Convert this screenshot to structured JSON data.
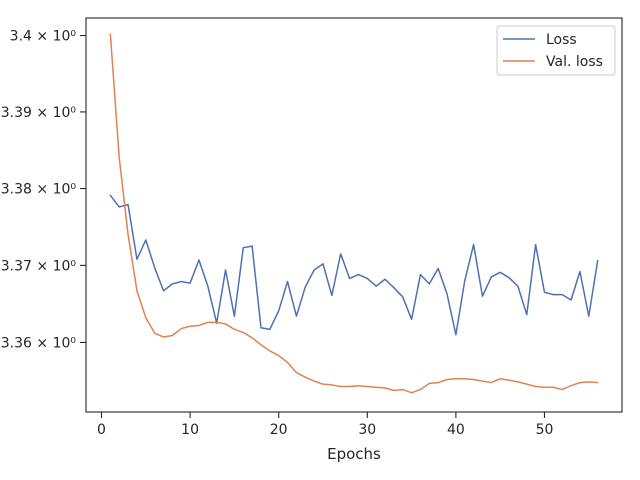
{
  "chart_data": {
    "type": "line",
    "title": "",
    "xlabel": "Epochs",
    "ylabel": "",
    "yscale": "log",
    "xlim": [
      -1.75,
      58.75
    ],
    "ylim": [
      3.351,
      3.4023
    ],
    "x_ticks": [
      0,
      10,
      20,
      30,
      40,
      50
    ],
    "x_tick_labels": [
      "0",
      "10",
      "20",
      "30",
      "40",
      "50"
    ],
    "y_ticks": [
      3.36,
      3.37,
      3.38,
      3.39,
      3.4
    ],
    "y_tick_labels": [
      "3.36 × 10⁰",
      "3.37 × 10⁰",
      "3.38 × 10⁰",
      "3.39 × 10⁰",
      "3.4 × 10⁰"
    ],
    "grid": false,
    "legend_position": "top-right",
    "x": [
      1,
      2,
      3,
      4,
      5,
      6,
      7,
      8,
      9,
      10,
      11,
      12,
      13,
      14,
      15,
      16,
      17,
      18,
      19,
      20,
      21,
      22,
      23,
      24,
      25,
      26,
      27,
      28,
      29,
      30,
      31,
      32,
      33,
      34,
      35,
      36,
      37,
      38,
      39,
      40,
      41,
      42,
      43,
      44,
      45,
      46,
      47,
      48,
      49,
      50,
      51,
      52,
      53,
      54,
      55,
      56
    ],
    "series": [
      {
        "name": "Loss",
        "color": "#4c72b0",
        "values": [
          3.3791,
          3.3776,
          3.3779,
          3.3708,
          3.3733,
          3.3697,
          3.3667,
          3.3676,
          3.3679,
          3.3677,
          3.3707,
          3.3673,
          3.3625,
          3.3694,
          3.3634,
          3.3723,
          3.3725,
          3.3619,
          3.3617,
          3.3641,
          3.3679,
          3.3634,
          3.3672,
          3.3694,
          3.3702,
          3.3661,
          3.3715,
          3.3683,
          3.3688,
          3.3683,
          3.3673,
          3.3682,
          3.3671,
          3.3659,
          3.363,
          3.3688,
          3.3676,
          3.3696,
          3.3663,
          3.361,
          3.368,
          3.3727,
          3.366,
          3.3685,
          3.3691,
          3.3684,
          3.3673,
          3.3636,
          3.3727,
          3.3665,
          3.3662,
          3.3662,
          3.3655,
          3.3692,
          3.3634,
          3.3706
        ]
      },
      {
        "name": "Val. loss",
        "color": "#dd8452",
        "values": [
          3.4002,
          3.384,
          3.374,
          3.3667,
          3.3632,
          3.3612,
          3.3607,
          3.3609,
          3.3618,
          3.3621,
          3.3622,
          3.3626,
          3.3626,
          3.3624,
          3.3617,
          3.3613,
          3.3606,
          3.3597,
          3.3589,
          3.3583,
          3.3574,
          3.3561,
          3.3555,
          3.355,
          3.3546,
          3.3545,
          3.3543,
          3.3543,
          3.3544,
          3.3543,
          3.3542,
          3.3541,
          3.3538,
          3.3539,
          3.3535,
          3.3539,
          3.3547,
          3.3548,
          3.3552,
          3.3553,
          3.3553,
          3.3552,
          3.355,
          3.3548,
          3.3553,
          3.3551,
          3.3549,
          3.3546,
          3.3543,
          3.3542,
          3.3542,
          3.3539,
          3.3544,
          3.3548,
          3.3549,
          3.3548
        ]
      }
    ]
  }
}
